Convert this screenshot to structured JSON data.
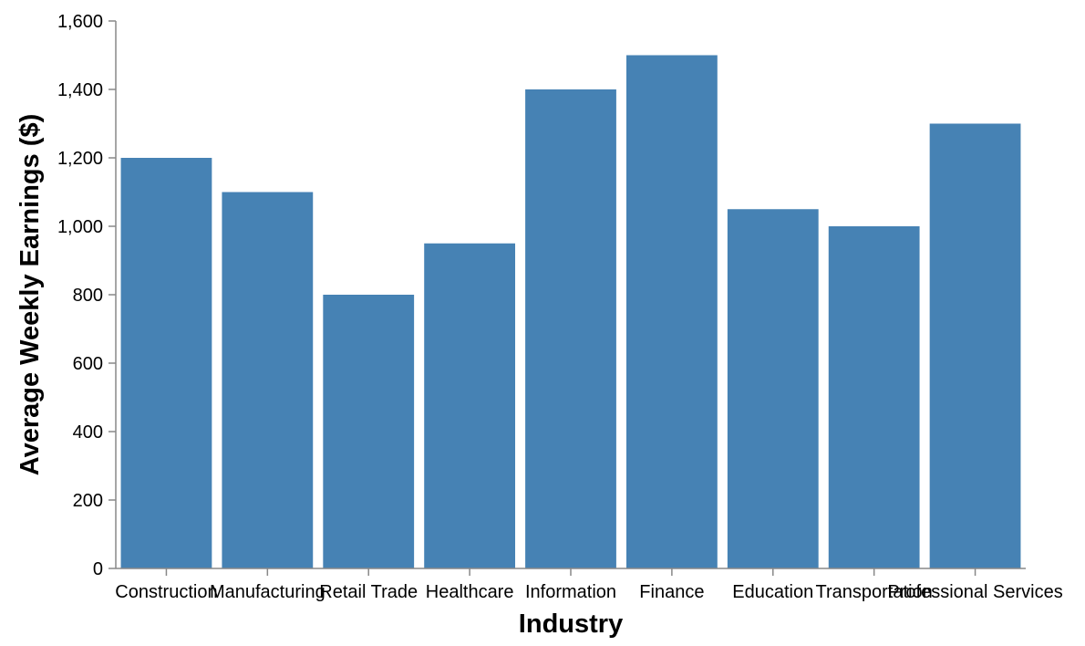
{
  "chart_data": {
    "type": "bar",
    "xlabel": "Industry",
    "ylabel": "Average Weekly Earnings ($)",
    "categories": [
      "Construction",
      "Manufacturing",
      "Retail Trade",
      "Healthcare",
      "Information",
      "Finance",
      "Education",
      "Transportation",
      "Professional Services"
    ],
    "values": [
      1200,
      1100,
      800,
      950,
      1400,
      1500,
      1050,
      1000,
      1300
    ],
    "ylim": [
      0,
      1600
    ],
    "yticks": [
      0,
      200,
      400,
      600,
      800,
      1000,
      1200,
      1400,
      1600
    ],
    "ytick_labels": [
      "0",
      "200",
      "400",
      "600",
      "800",
      "1,000",
      "1,200",
      "1,400",
      "1,600"
    ],
    "grid": false,
    "bar_color": "#4682b4"
  }
}
